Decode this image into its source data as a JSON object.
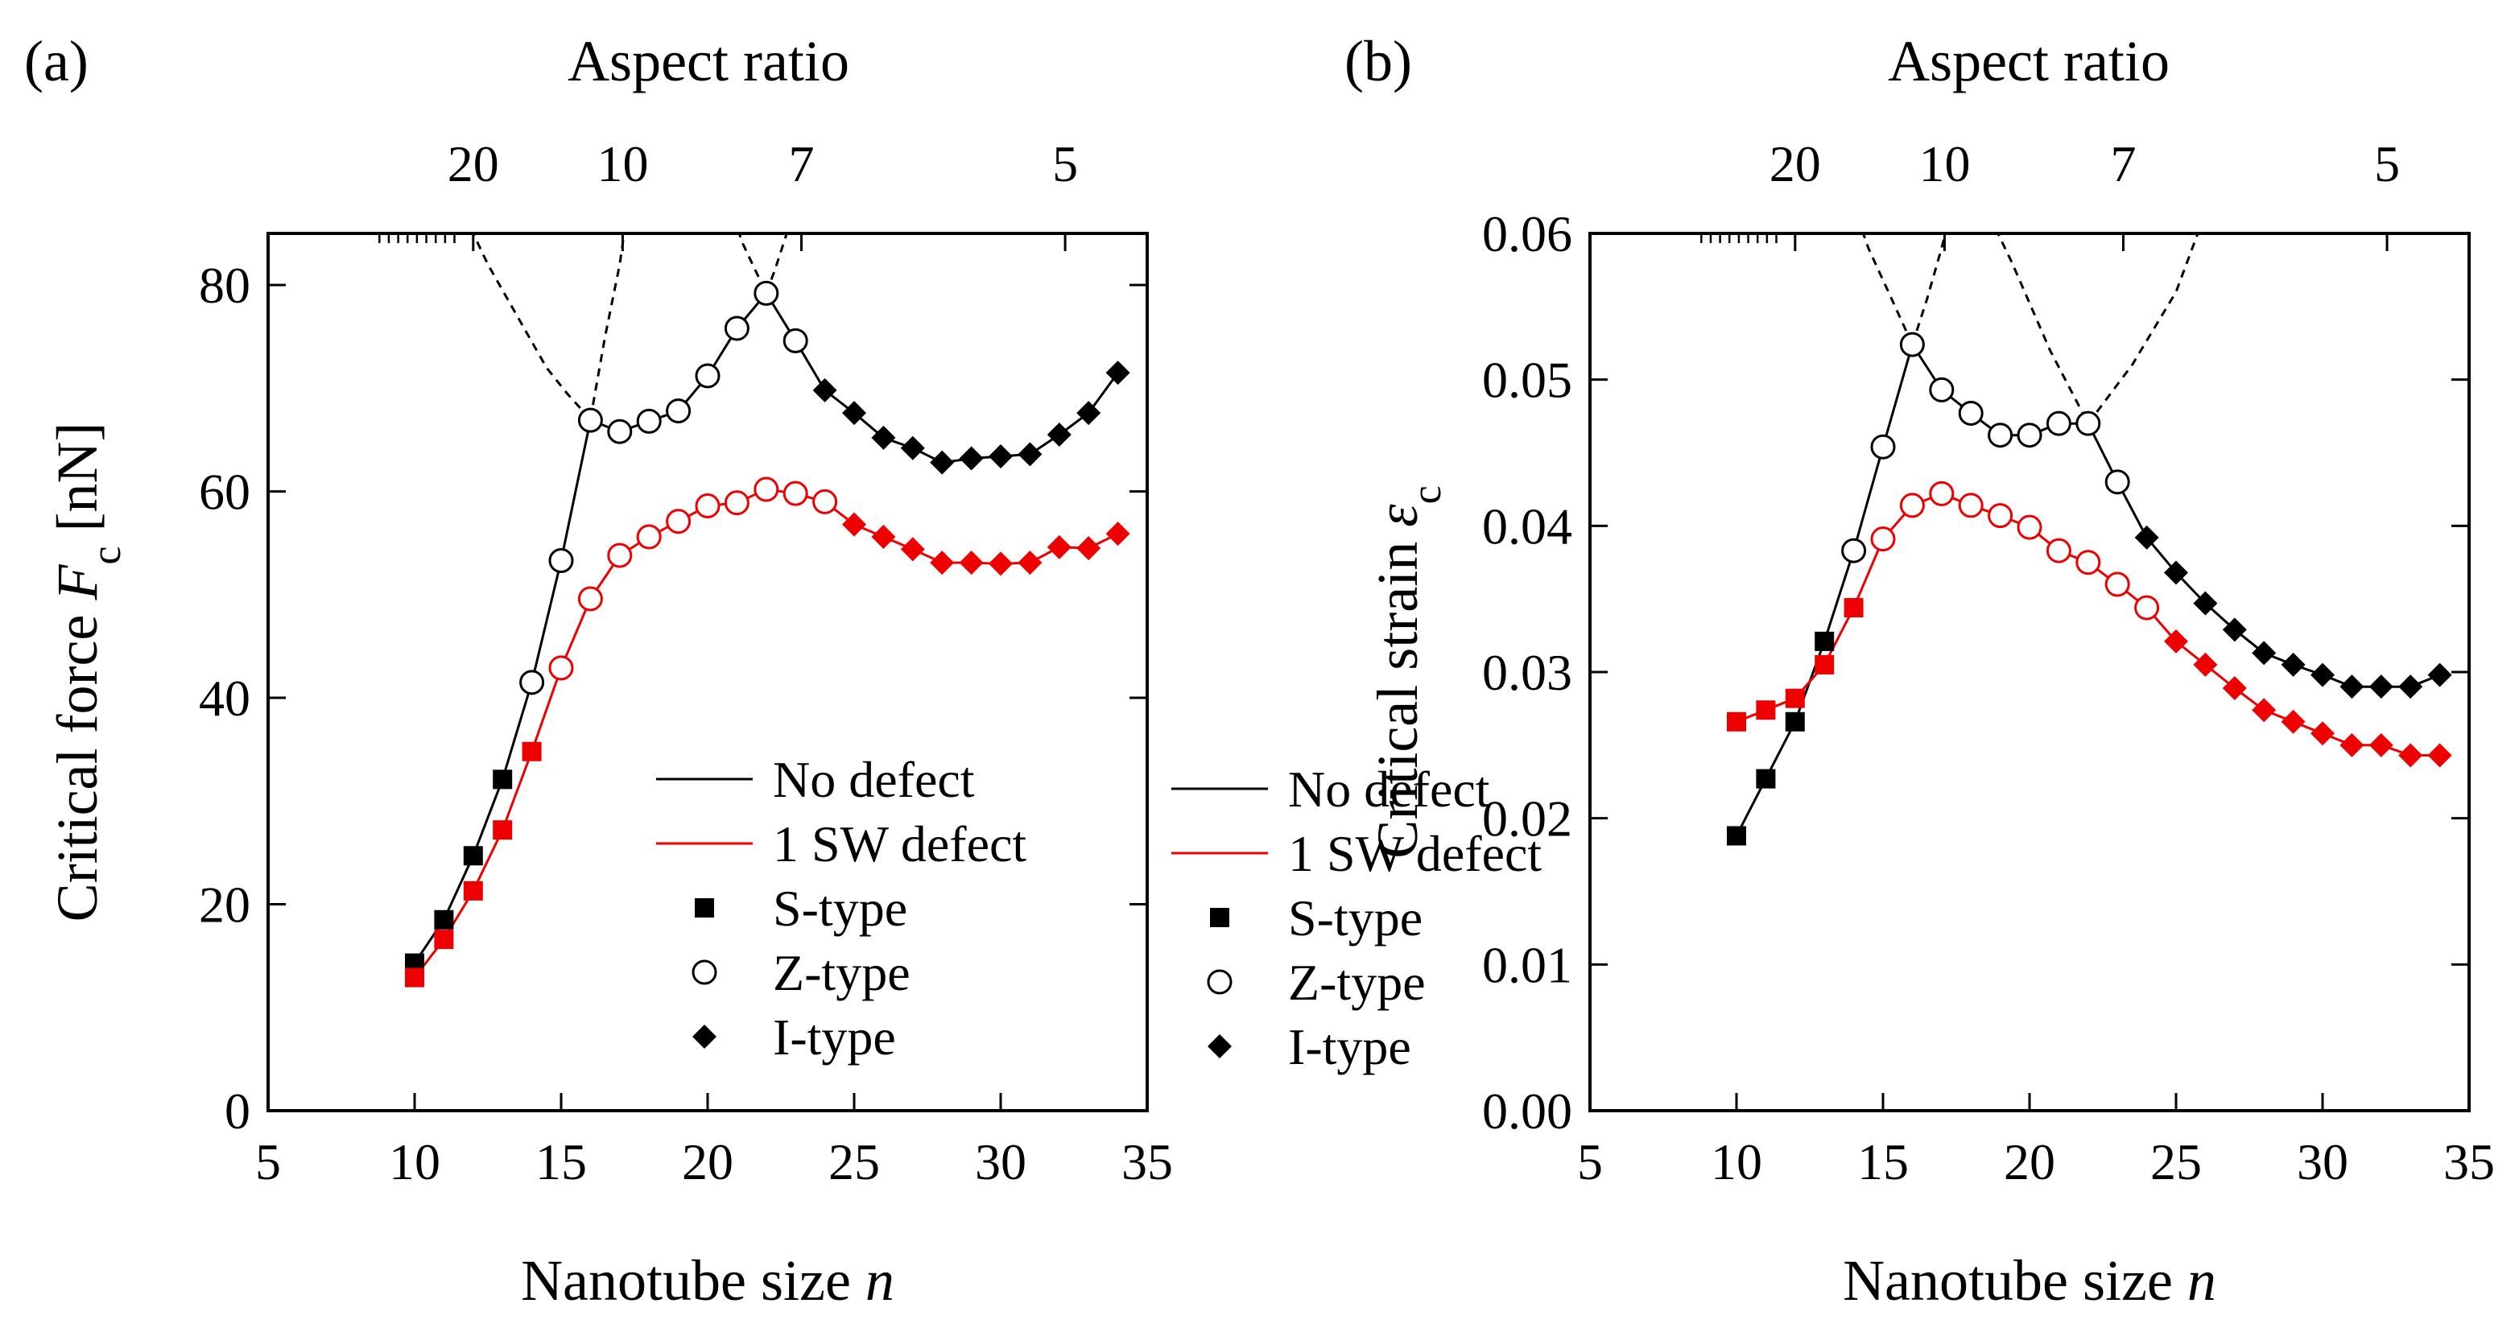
{
  "chart_data": [
    {
      "panel_label": "(a)",
      "type": "line",
      "title": "",
      "top_axis_label": "Aspect ratio",
      "top_ticks": [
        {
          "label": "20",
          "n": 12
        },
        {
          "label": "10",
          "n": 17.1
        },
        {
          "label": "7",
          "n": 23.2
        },
        {
          "label": "5",
          "n": 32.2
        }
      ],
      "xlabel": "Nanotube size",
      "xlabel_var": "n",
      "ylabel": "Critical force",
      "ylabel_sym": "F",
      "ylabel_sub": "c",
      "ylabel_unit": "[nN]",
      "xlim": [
        5,
        35
      ],
      "ylim": [
        0,
        85
      ],
      "xticks": [
        5,
        10,
        15,
        20,
        25,
        30,
        35
      ],
      "yticks": [
        0,
        20,
        40,
        60,
        80
      ],
      "ytick_labels": [
        "0",
        "20",
        "40",
        "60",
        "80"
      ],
      "series": [
        {
          "name": "No defect",
          "color": "#000000",
          "points": [
            {
              "n": 10,
              "v": 14.3,
              "m": "S"
            },
            {
              "n": 11,
              "v": 18.5,
              "m": "S"
            },
            {
              "n": 12,
              "v": 24.7,
              "m": "S"
            },
            {
              "n": 13,
              "v": 32.1,
              "m": "S"
            },
            {
              "n": 14,
              "v": 41.5,
              "m": "Z"
            },
            {
              "n": 15,
              "v": 53.3,
              "m": "Z"
            },
            {
              "n": 16,
              "v": 66.9,
              "m": "Z"
            },
            {
              "n": 17,
              "v": 65.8,
              "m": "Z"
            },
            {
              "n": 18,
              "v": 66.8,
              "m": "Z"
            },
            {
              "n": 19,
              "v": 67.8,
              "m": "Z"
            },
            {
              "n": 20,
              "v": 71.2,
              "m": "Z"
            },
            {
              "n": 21,
              "v": 75.8,
              "m": "Z"
            },
            {
              "n": 22,
              "v": 79.2,
              "m": "Z"
            },
            {
              "n": 23,
              "v": 74.6,
              "m": "Z"
            },
            {
              "n": 24,
              "v": 69.8,
              "m": "I"
            },
            {
              "n": 25,
              "v": 67.6,
              "m": "I"
            },
            {
              "n": 26,
              "v": 65.2,
              "m": "I"
            },
            {
              "n": 27,
              "v": 64.2,
              "m": "I"
            },
            {
              "n": 28,
              "v": 62.8,
              "m": "I"
            },
            {
              "n": 29,
              "v": 63.2,
              "m": "I"
            },
            {
              "n": 30,
              "v": 63.4,
              "m": "I"
            },
            {
              "n": 31,
              "v": 63.6,
              "m": "I"
            },
            {
              "n": 32,
              "v": 65.5,
              "m": "I"
            },
            {
              "n": 33,
              "v": 67.6,
              "m": "I"
            },
            {
              "n": 34,
              "v": 71.5,
              "m": "I"
            }
          ]
        },
        {
          "name": "1 SW defect",
          "color": "#ee0000",
          "points": [
            {
              "n": 10,
              "v": 12.9,
              "m": "S"
            },
            {
              "n": 11,
              "v": 16.6,
              "m": "S"
            },
            {
              "n": 12,
              "v": 21.3,
              "m": "S"
            },
            {
              "n": 13,
              "v": 27.2,
              "m": "S"
            },
            {
              "n": 14,
              "v": 34.8,
              "m": "S"
            },
            {
              "n": 15,
              "v": 42.9,
              "m": "Z"
            },
            {
              "n": 16,
              "v": 49.6,
              "m": "Z"
            },
            {
              "n": 17,
              "v": 53.8,
              "m": "Z"
            },
            {
              "n": 18,
              "v": 55.6,
              "m": "Z"
            },
            {
              "n": 19,
              "v": 57.1,
              "m": "Z"
            },
            {
              "n": 20,
              "v": 58.6,
              "m": "Z"
            },
            {
              "n": 21,
              "v": 58.9,
              "m": "Z"
            },
            {
              "n": 22,
              "v": 60.2,
              "m": "Z"
            },
            {
              "n": 23,
              "v": 59.8,
              "m": "Z"
            },
            {
              "n": 24,
              "v": 59.0,
              "m": "Z"
            },
            {
              "n": 25,
              "v": 56.8,
              "m": "I"
            },
            {
              "n": 26,
              "v": 55.6,
              "m": "I"
            },
            {
              "n": 27,
              "v": 54.4,
              "m": "I"
            },
            {
              "n": 28,
              "v": 53.1,
              "m": "I"
            },
            {
              "n": 29,
              "v": 53.1,
              "m": "I"
            },
            {
              "n": 30,
              "v": 53.0,
              "m": "I"
            },
            {
              "n": 31,
              "v": 53.1,
              "m": "I"
            },
            {
              "n": 32,
              "v": 54.6,
              "m": "I"
            },
            {
              "n": 33,
              "v": 54.5,
              "m": "I"
            },
            {
              "n": 34,
              "v": 55.9,
              "m": "I"
            }
          ]
        }
      ],
      "dashed_guides": [
        {
          "points": [
            [
              11.5,
              88
            ],
            [
              12.5,
              82
            ],
            [
              13.5,
              77
            ],
            [
              14.5,
              72
            ],
            [
              15.2,
              69.5
            ],
            [
              16,
              67
            ]
          ]
        },
        {
          "points": [
            [
              16,
              67
            ],
            [
              16.5,
              75
            ],
            [
              17,
              82
            ],
            [
              17.3,
              88
            ]
          ]
        },
        {
          "points": [
            [
              20.7,
              88
            ],
            [
              21.2,
              84
            ],
            [
              21.7,
              81
            ],
            [
              22,
              79.2
            ]
          ]
        },
        {
          "points": [
            [
              22,
              79.2
            ],
            [
              22.3,
              81.5
            ],
            [
              22.7,
              85
            ],
            [
              23,
              88
            ]
          ]
        }
      ],
      "legend": {
        "position": "bottom-right",
        "lines": [
          {
            "label": "No defect",
            "color": "#000000"
          },
          {
            "label": "1 SW defect",
            "color": "#ee0000"
          }
        ],
        "markers": [
          {
            "label": "S-type",
            "marker": "square"
          },
          {
            "label": "Z-type",
            "marker": "circle"
          },
          {
            "label": "I-type",
            "marker": "diamond"
          }
        ]
      }
    },
    {
      "panel_label": "(b)",
      "type": "line",
      "title": "",
      "top_axis_label": "Aspect ratio",
      "top_ticks": [
        {
          "label": "20",
          "n": 12
        },
        {
          "label": "10",
          "n": 17.1
        },
        {
          "label": "7",
          "n": 23.2
        },
        {
          "label": "5",
          "n": 32.2
        }
      ],
      "xlabel": "Nanotube size",
      "xlabel_var": "n",
      "ylabel": "Critical strain",
      "ylabel_sym": "ε",
      "ylabel_sub": "c",
      "ylabel_unit": "",
      "xlim": [
        5,
        35
      ],
      "ylim": [
        0,
        0.06
      ],
      "xticks": [
        5,
        10,
        15,
        20,
        25,
        30,
        35
      ],
      "yticks": [
        0,
        0.01,
        0.02,
        0.03,
        0.04,
        0.05,
        0.06
      ],
      "ytick_labels": [
        "0.00",
        "0.01",
        "0.02",
        "0.03",
        "0.04",
        "0.05",
        "0.06"
      ],
      "series": [
        {
          "name": "No defect",
          "color": "#000000",
          "points": [
            {
              "n": 10,
              "v": 0.0188,
              "m": "S"
            },
            {
              "n": 11,
              "v": 0.0227,
              "m": "S"
            },
            {
              "n": 12,
              "v": 0.0266,
              "m": "S"
            },
            {
              "n": 13,
              "v": 0.0321,
              "m": "S"
            },
            {
              "n": 14,
              "v": 0.0383,
              "m": "Z"
            },
            {
              "n": 15,
              "v": 0.0454,
              "m": "Z"
            },
            {
              "n": 16,
              "v": 0.0524,
              "m": "Z"
            },
            {
              "n": 17,
              "v": 0.0493,
              "m": "Z"
            },
            {
              "n": 18,
              "v": 0.0477,
              "m": "Z"
            },
            {
              "n": 19,
              "v": 0.0462,
              "m": "Z"
            },
            {
              "n": 20,
              "v": 0.0462,
              "m": "Z"
            },
            {
              "n": 21,
              "v": 0.047,
              "m": "Z"
            },
            {
              "n": 22,
              "v": 0.047,
              "m": "Z"
            },
            {
              "n": 23,
              "v": 0.043,
              "m": "Z"
            },
            {
              "n": 24,
              "v": 0.0392,
              "m": "I"
            },
            {
              "n": 25,
              "v": 0.0368,
              "m": "I"
            },
            {
              "n": 26,
              "v": 0.0347,
              "m": "I"
            },
            {
              "n": 27,
              "v": 0.0329,
              "m": "I"
            },
            {
              "n": 28,
              "v": 0.0313,
              "m": "I"
            },
            {
              "n": 29,
              "v": 0.0305,
              "m": "I"
            },
            {
              "n": 30,
              "v": 0.0298,
              "m": "I"
            },
            {
              "n": 31,
              "v": 0.029,
              "m": "I"
            },
            {
              "n": 32,
              "v": 0.029,
              "m": "I"
            },
            {
              "n": 33,
              "v": 0.029,
              "m": "I"
            },
            {
              "n": 34,
              "v": 0.0298,
              "m": "I"
            }
          ]
        },
        {
          "name": "1 SW defect",
          "color": "#ee0000",
          "points": [
            {
              "n": 10,
              "v": 0.0266,
              "m": "S"
            },
            {
              "n": 11,
              "v": 0.0274,
              "m": "S"
            },
            {
              "n": 12,
              "v": 0.0282,
              "m": "S"
            },
            {
              "n": 13,
              "v": 0.0305,
              "m": "S"
            },
            {
              "n": 14,
              "v": 0.0344,
              "m": "S"
            },
            {
              "n": 15,
              "v": 0.0391,
              "m": "Z"
            },
            {
              "n": 16,
              "v": 0.0414,
              "m": "Z"
            },
            {
              "n": 17,
              "v": 0.0422,
              "m": "Z"
            },
            {
              "n": 18,
              "v": 0.0414,
              "m": "Z"
            },
            {
              "n": 19,
              "v": 0.0407,
              "m": "Z"
            },
            {
              "n": 20,
              "v": 0.0399,
              "m": "Z"
            },
            {
              "n": 21,
              "v": 0.0383,
              "m": "Z"
            },
            {
              "n": 22,
              "v": 0.0375,
              "m": "Z"
            },
            {
              "n": 23,
              "v": 0.036,
              "m": "Z"
            },
            {
              "n": 24,
              "v": 0.0344,
              "m": "Z"
            },
            {
              "n": 25,
              "v": 0.0321,
              "m": "I"
            },
            {
              "n": 26,
              "v": 0.0305,
              "m": "I"
            },
            {
              "n": 27,
              "v": 0.0289,
              "m": "I"
            },
            {
              "n": 28,
              "v": 0.0274,
              "m": "I"
            },
            {
              "n": 29,
              "v": 0.0266,
              "m": "I"
            },
            {
              "n": 30,
              "v": 0.0258,
              "m": "I"
            },
            {
              "n": 31,
              "v": 0.025,
              "m": "I"
            },
            {
              "n": 32,
              "v": 0.025,
              "m": "I"
            },
            {
              "n": 33,
              "v": 0.0243,
              "m": "I"
            },
            {
              "n": 34,
              "v": 0.0243,
              "m": "I"
            }
          ]
        }
      ],
      "dashed_guides": [
        {
          "points": [
            [
              13.8,
              0.063
            ],
            [
              14.5,
              0.059
            ],
            [
              15.3,
              0.0555
            ],
            [
              16,
              0.0524
            ]
          ]
        },
        {
          "points": [
            [
              16,
              0.0524
            ],
            [
              16.5,
              0.0555
            ],
            [
              17,
              0.059
            ],
            [
              17.5,
              0.063
            ]
          ]
        },
        {
          "points": [
            [
              18.2,
              0.063
            ],
            [
              19.4,
              0.058
            ],
            [
              20.7,
              0.052
            ],
            [
              22,
              0.047
            ]
          ]
        },
        {
          "points": [
            [
              22,
              0.047
            ],
            [
              23.5,
              0.051
            ],
            [
              25,
              0.056
            ],
            [
              26.3,
              0.063
            ]
          ]
        }
      ],
      "legend": {
        "position": "bottom-right",
        "lines": [
          {
            "label": "No defect",
            "color": "#000000"
          },
          {
            "label": "1 SW defect",
            "color": "#ee0000"
          }
        ],
        "markers": [
          {
            "label": "S-type",
            "marker": "square"
          },
          {
            "label": "Z-type",
            "marker": "circle"
          },
          {
            "label": "I-type",
            "marker": "diamond"
          }
        ]
      }
    }
  ]
}
